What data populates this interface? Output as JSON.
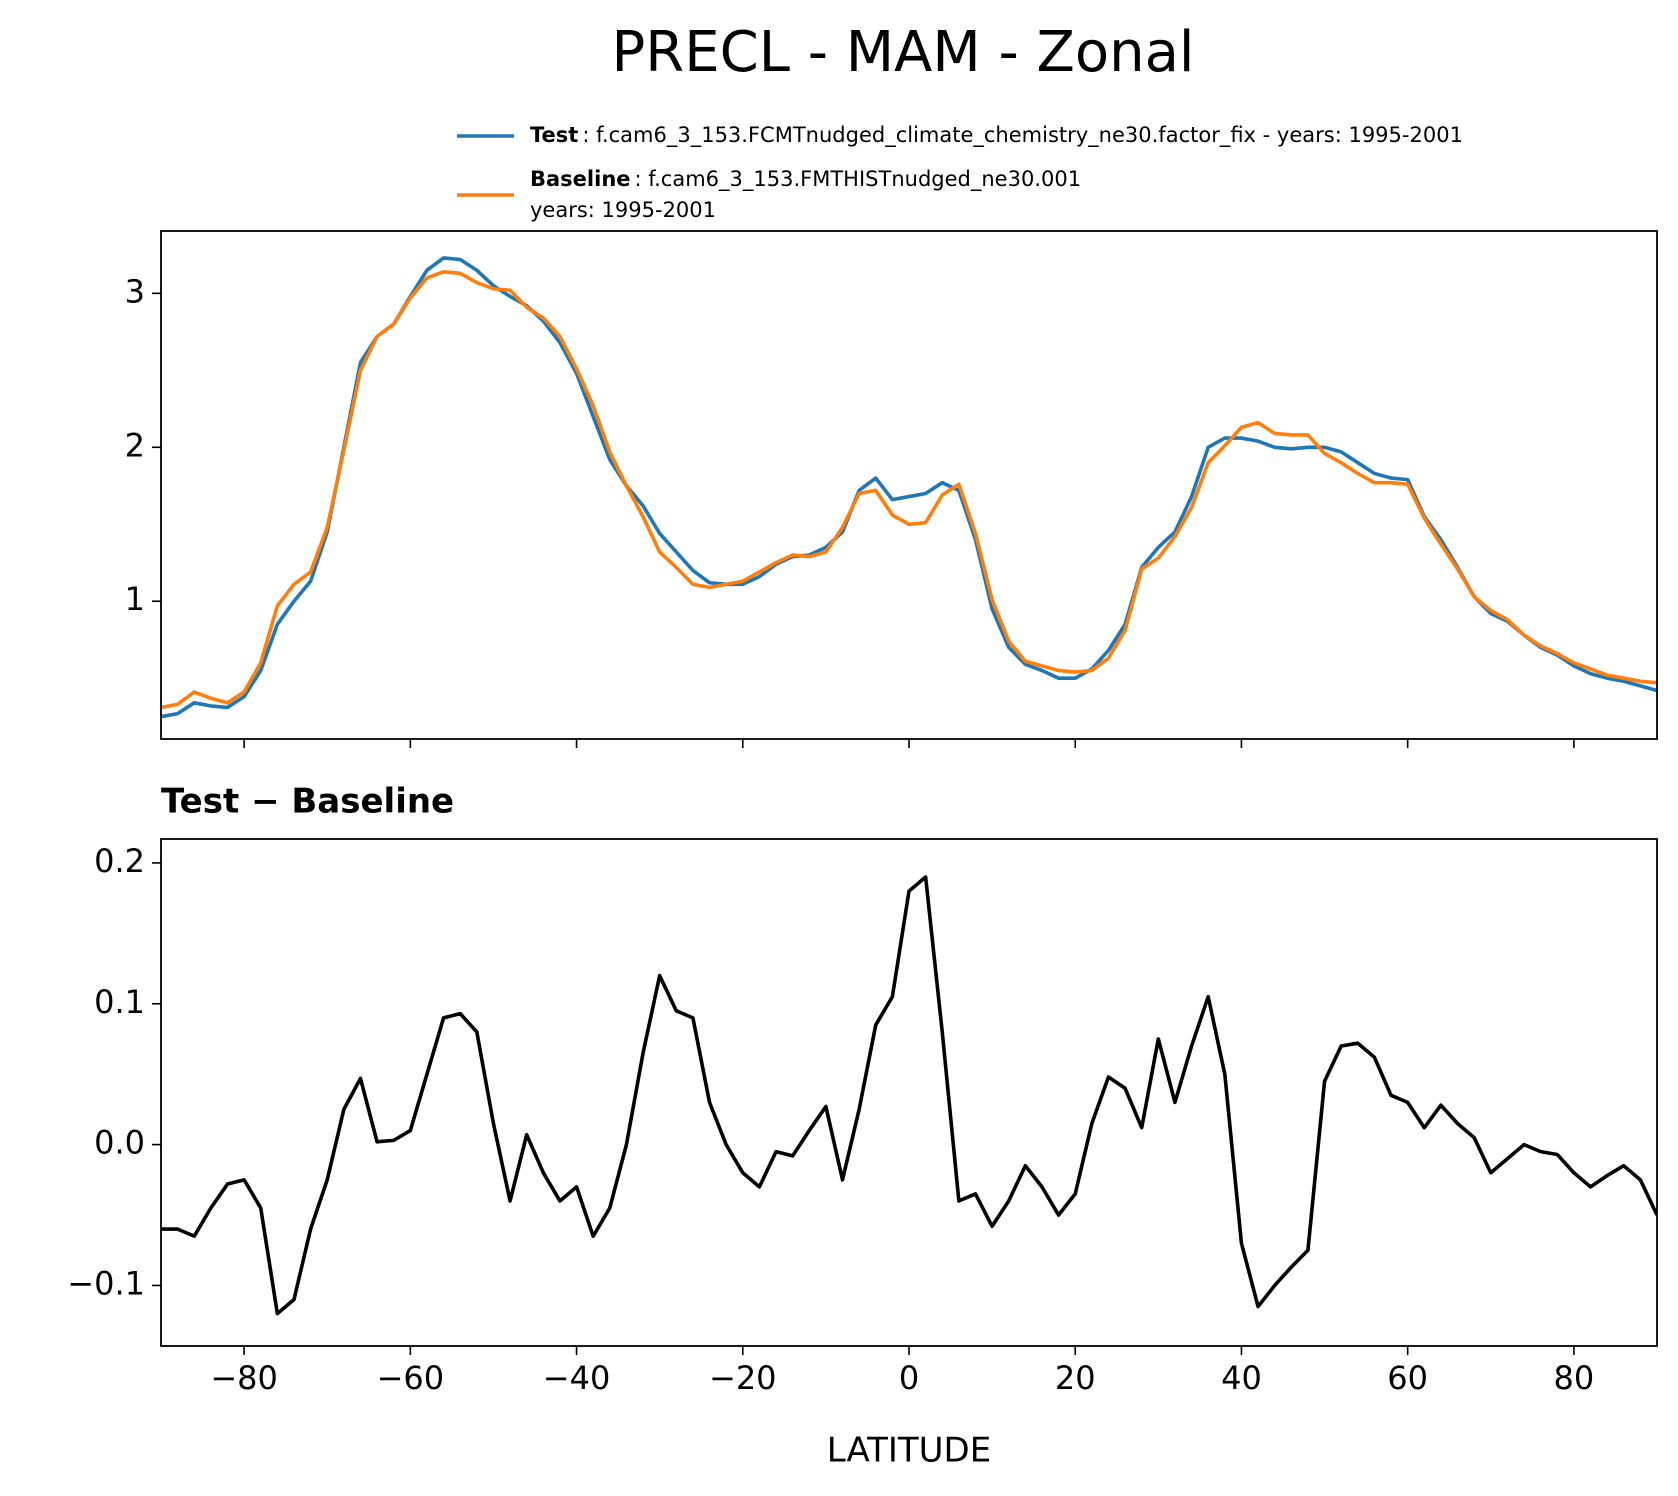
{
  "title": "PRECL - MAM - Zonal",
  "chart_data": [
    {
      "type": "line",
      "x": [
        -90,
        -88,
        -86,
        -84,
        -82,
        -80,
        -78,
        -76,
        -74,
        -72,
        -70,
        -68,
        -66,
        -64,
        -62,
        -60,
        -58,
        -56,
        -54,
        -52,
        -50,
        -48,
        -46,
        -44,
        -42,
        -40,
        -38,
        -36,
        -34,
        -32,
        -30,
        -28,
        -26,
        -24,
        -22,
        -20,
        -18,
        -16,
        -14,
        -12,
        -10,
        -8,
        -6,
        -4,
        -2,
        0,
        2,
        4,
        6,
        8,
        10,
        12,
        14,
        16,
        18,
        20,
        22,
        24,
        26,
        28,
        30,
        32,
        34,
        36,
        38,
        40,
        42,
        44,
        46,
        48,
        50,
        52,
        54,
        56,
        58,
        60,
        62,
        64,
        66,
        68,
        70,
        72,
        74,
        76,
        78,
        80,
        82,
        84,
        86,
        88,
        90
      ],
      "series": [
        {
          "name": "Test",
          "description": [
            ": f.cam6_3_153.FCMTnudged_climate_chemistry_ne30.factor_fix - years: 1995-2001"
          ],
          "color": "#1f77b4",
          "values": [
            0.25,
            0.27,
            0.34,
            0.32,
            0.31,
            0.38,
            0.55,
            0.85,
            1.0,
            1.13,
            1.45,
            2.0,
            2.55,
            2.72,
            2.8,
            2.98,
            3.15,
            3.23,
            3.22,
            3.15,
            3.05,
            2.98,
            2.92,
            2.82,
            2.68,
            2.48,
            2.2,
            1.92,
            1.75,
            1.62,
            1.44,
            1.32,
            1.2,
            1.12,
            1.11,
            1.11,
            1.16,
            1.24,
            1.29,
            1.3,
            1.35,
            1.45,
            1.72,
            1.8,
            1.66,
            1.68,
            1.7,
            1.77,
            1.72,
            1.4,
            0.95,
            0.7,
            0.59,
            0.55,
            0.5,
            0.5,
            0.56,
            0.68,
            0.85,
            1.22,
            1.35,
            1.45,
            1.68,
            2.0,
            2.06,
            2.06,
            2.04,
            2.0,
            1.99,
            2.0,
            2.0,
            1.97,
            1.9,
            1.83,
            1.8,
            1.79,
            1.55,
            1.4,
            1.22,
            1.03,
            0.92,
            0.87,
            0.78,
            0.7,
            0.65,
            0.58,
            0.53,
            0.5,
            0.48,
            0.45,
            0.42
          ]
        },
        {
          "name": "Baseline",
          "description": [
            ": f.cam6_3_153.FMTHISTnudged_ne30.001",
            "years: 1995-2001"
          ],
          "color": "#ff7f0e",
          "values": [
            0.31,
            0.33,
            0.41,
            0.37,
            0.34,
            0.41,
            0.6,
            0.97,
            1.11,
            1.19,
            1.48,
            1.98,
            2.5,
            2.72,
            2.8,
            2.97,
            3.1,
            3.14,
            3.13,
            3.07,
            3.03,
            3.02,
            2.91,
            2.84,
            2.72,
            2.51,
            2.27,
            1.97,
            1.75,
            1.55,
            1.32,
            1.22,
            1.11,
            1.09,
            1.11,
            1.13,
            1.19,
            1.25,
            1.3,
            1.29,
            1.32,
            1.48,
            1.7,
            1.72,
            1.56,
            1.5,
            1.51,
            1.69,
            1.76,
            1.44,
            1.01,
            0.74,
            0.61,
            0.58,
            0.55,
            0.54,
            0.55,
            0.63,
            0.81,
            1.21,
            1.28,
            1.42,
            1.61,
            1.9,
            2.01,
            2.13,
            2.16,
            2.09,
            2.08,
            2.08,
            1.96,
            1.9,
            1.83,
            1.77,
            1.77,
            1.76,
            1.54,
            1.37,
            1.21,
            1.03,
            0.94,
            0.88,
            0.78,
            0.71,
            0.66,
            0.6,
            0.56,
            0.52,
            0.5,
            0.48,
            0.47
          ]
        }
      ],
      "xlim": [
        -90,
        90
      ],
      "xticks": [
        -80,
        -60,
        -40,
        -20,
        0,
        20,
        40,
        60,
        80
      ],
      "ylim": [
        0.105,
        3.405
      ],
      "yticks": [
        1,
        2,
        3
      ]
    },
    {
      "type": "line",
      "title": "Test − Baseline",
      "xlabel": "LATITUDE",
      "x": [
        -90,
        -88,
        -86,
        -84,
        -82,
        -80,
        -78,
        -76,
        -74,
        -72,
        -70,
        -68,
        -66,
        -64,
        -62,
        -60,
        -58,
        -56,
        -54,
        -52,
        -50,
        -48,
        -46,
        -44,
        -42,
        -40,
        -38,
        -36,
        -34,
        -32,
        -30,
        -28,
        -26,
        -24,
        -22,
        -20,
        -18,
        -16,
        -14,
        -12,
        -10,
        -8,
        -6,
        -4,
        -2,
        0,
        2,
        4,
        6,
        8,
        10,
        12,
        14,
        16,
        18,
        20,
        22,
        24,
        26,
        28,
        30,
        32,
        34,
        36,
        38,
        40,
        42,
        44,
        46,
        48,
        50,
        52,
        54,
        56,
        58,
        60,
        62,
        64,
        66,
        68,
        70,
        72,
        74,
        76,
        78,
        80,
        82,
        84,
        86,
        88,
        90
      ],
      "series": [
        {
          "color": "#000000",
          "values": [
            -0.06,
            -0.06,
            -0.065,
            -0.045,
            -0.028,
            -0.025,
            -0.045,
            -0.12,
            -0.11,
            -0.06,
            -0.025,
            0.025,
            0.047,
            0.002,
            0.003,
            0.01,
            0.05,
            0.09,
            0.093,
            0.08,
            0.015,
            -0.04,
            0.007,
            -0.02,
            -0.04,
            -0.03,
            -0.065,
            -0.045,
            0.0,
            0.065,
            0.12,
            0.095,
            0.09,
            0.03,
            0.0,
            -0.02,
            -0.03,
            -0.005,
            -0.008,
            0.01,
            0.027,
            -0.025,
            0.025,
            0.085,
            0.105,
            0.18,
            0.19,
            0.08,
            -0.04,
            -0.035,
            -0.058,
            -0.04,
            -0.015,
            -0.03,
            -0.05,
            -0.035,
            0.015,
            0.048,
            0.04,
            0.012,
            0.075,
            0.03,
            0.07,
            0.105,
            0.05,
            -0.07,
            -0.115,
            -0.1,
            -0.087,
            -0.075,
            0.045,
            0.07,
            0.072,
            0.062,
            0.035,
            0.03,
            0.012,
            0.028,
            0.015,
            0.005,
            -0.02,
            -0.01,
            0.0,
            -0.005,
            -0.007,
            -0.02,
            -0.03,
            -0.022,
            -0.015,
            -0.025,
            -0.05
          ]
        }
      ],
      "xlim": [
        -90,
        90
      ],
      "xticks": [
        {
          "value": -80,
          "label": "−80"
        },
        {
          "value": -60,
          "label": "−60"
        },
        {
          "value": -40,
          "label": "−40"
        },
        {
          "value": -20,
          "label": "−20"
        },
        0,
        20,
        40,
        60,
        80
      ],
      "ylim": [
        -0.143,
        0.217
      ],
      "yticks": [
        {
          "value": -0.1,
          "label": "−0.1"
        },
        {
          "value": 0,
          "label": "0.0"
        },
        0.1,
        0.2
      ]
    }
  ]
}
